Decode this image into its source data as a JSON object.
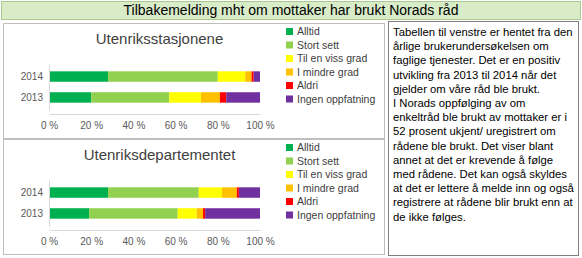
{
  "header": {
    "title": "Tilbakemelding mht om mottaker har brukt Norads råd"
  },
  "chart_data": [
    {
      "type": "bar",
      "title": "Utenriksstasjonene",
      "orientation": "horizontal",
      "stacked": true,
      "categories": [
        "2014",
        "2013"
      ],
      "series": [
        {
          "name": "Alltid",
          "color": "#00b050",
          "values": [
            28,
            20
          ]
        },
        {
          "name": "Stort sett",
          "color": "#92d050",
          "values": [
            52,
            37
          ]
        },
        {
          "name": "Til en viss grad",
          "color": "#ffff00",
          "values": [
            13,
            15
          ]
        },
        {
          "name": "I mindre grad",
          "color": "#ffc000",
          "values": [
            3,
            9
          ]
        },
        {
          "name": "Aldri",
          "color": "#ff0000",
          "values": [
            1,
            3
          ]
        },
        {
          "name": "Ingen oppfatning",
          "color": "#7030a0",
          "values": [
            3,
            16
          ]
        }
      ],
      "xlim": [
        0,
        100
      ],
      "xticks": [
        {
          "value": 0,
          "label": "0 %"
        },
        {
          "value": 20,
          "label": "20 %"
        },
        {
          "value": 40,
          "label": "40 %"
        },
        {
          "value": 60,
          "label": "60 %"
        },
        {
          "value": 80,
          "label": "80 %"
        },
        {
          "value": 100,
          "label": "100 %"
        }
      ],
      "grid": false,
      "legend": "right"
    },
    {
      "type": "bar",
      "title": "Utenriksdepartementet",
      "orientation": "horizontal",
      "stacked": true,
      "categories": [
        "2014",
        "2013"
      ],
      "series": [
        {
          "name": "Alltid",
          "color": "#00b050",
          "values": [
            28,
            19
          ]
        },
        {
          "name": "Stort sett",
          "color": "#92d050",
          "values": [
            43,
            42
          ]
        },
        {
          "name": "Til en viss grad",
          "color": "#ffff00",
          "values": [
            11,
            9
          ]
        },
        {
          "name": "I mindre grad",
          "color": "#ffc000",
          "values": [
            7,
            3
          ]
        },
        {
          "name": "Aldri",
          "color": "#ff0000",
          "values": [
            1,
            1
          ]
        },
        {
          "name": "Ingen oppfatning",
          "color": "#7030a0",
          "values": [
            10,
            26
          ]
        }
      ],
      "xlim": [
        0,
        100
      ],
      "xticks": [
        {
          "value": 0,
          "label": "0 %"
        },
        {
          "value": 20,
          "label": "20 %"
        },
        {
          "value": 40,
          "label": "40 %"
        },
        {
          "value": 60,
          "label": "60 %"
        },
        {
          "value": 80,
          "label": "80 %"
        },
        {
          "value": 100,
          "label": "100 %"
        }
      ],
      "grid": false,
      "legend": "right"
    }
  ],
  "text_box": {
    "paragraphs": [
      "Tabellen til venstre er hentet fra den årlige brukerundersøkelsen om faglige tjenester. Det er en positiv utvikling fra 2013 til 2014 når det gjelder om våre råd ble brukt.",
      "I Norads oppfølging av om enkeltråd ble brukt av mottaker er i 52 prosent ukjent/ uregistrert om rådene ble brukt. Det viser blant annet at det er krevende å følge med rådene. Det kan også skyldes at det er lettere å melde inn og også registrere at rådene blir brukt enn at de ikke følges."
    ]
  }
}
